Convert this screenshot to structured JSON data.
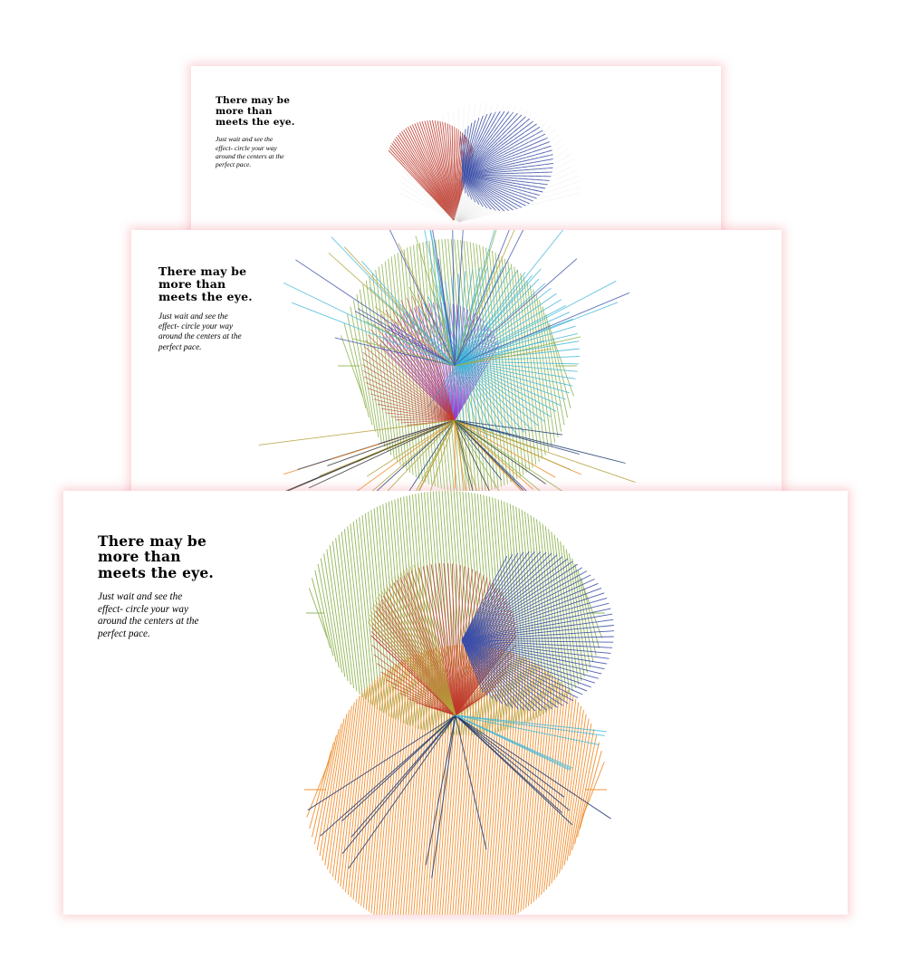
{
  "slides": [
    {
      "heading": "There may be\nmore than\nmeets the eye.",
      "body": "Just wait and see the\neffect- circle your way\naround the centers at the\nperfect pace."
    },
    {
      "heading": "There may be\nmore than\nmeets the eye.",
      "body": "Just wait and see the\neffect- circle your way\naround the centers at the\nperfect pace."
    },
    {
      "heading": "There may be\nmore than\nmeets the eye.",
      "body": "Just wait and see the\neffect- circle your way\naround the centers at the\nperfect pace."
    }
  ],
  "colors": {
    "red": "#c0392b",
    "blue": "#3b4fa8",
    "green": "#8bb04a",
    "orange": "#f08a24",
    "cyan": "#3fb6d8",
    "purple": "#9b3fd0",
    "navy": "#1f3a6e",
    "olive": "#b3a13a",
    "dark": "#333333",
    "card_glow": "#f0828c"
  }
}
